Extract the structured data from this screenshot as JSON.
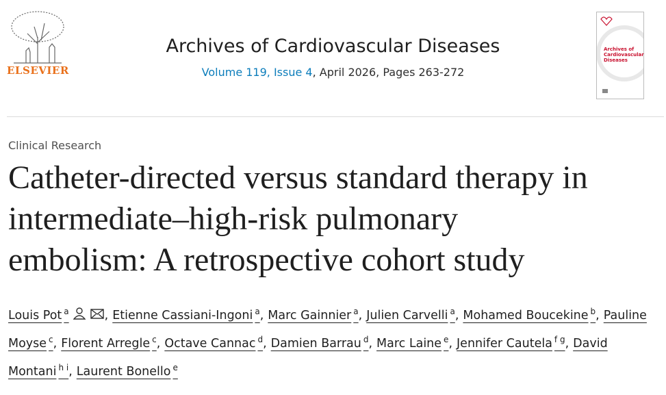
{
  "header": {
    "publisher": "ELSEVIER",
    "journal": "Archives of Cardiovascular Diseases",
    "volume_issue": "Volume 119, Issue 4",
    "date_pages": ", April 2026, Pages 263-272",
    "cover_title": "Archives of Cardiovascular Diseases"
  },
  "article": {
    "section": "Clinical Research",
    "title_lines": [
      "Catheter-directed versus standard therapy in",
      "intermediate–high-risk pulmonary",
      "embolism: A retrospective cohort study"
    ],
    "authors": [
      {
        "name": "Louis Pot",
        "aff": "a"
      },
      {
        "name": "Etienne Cassiani-Ingoni",
        "aff": "a"
      },
      {
        "name": "Marc Gainnier",
        "aff": "a"
      },
      {
        "name": "Julien Carvelli",
        "aff": "a"
      },
      {
        "name": "Mohamed Boucekine",
        "aff": "b"
      },
      {
        "name": "Pauline Moyse",
        "aff": "c"
      },
      {
        "name": "Florent Arregle",
        "aff": "c"
      },
      {
        "name": "Octave Cannac",
        "aff": "d"
      },
      {
        "name": "Damien Barrau",
        "aff": "d"
      },
      {
        "name": "Marc Laine",
        "aff": "e"
      },
      {
        "name": "Jennifer Cautela",
        "aff": "f g"
      },
      {
        "name": "David Montani",
        "aff": "h i"
      },
      {
        "name": "Laurent Bonello",
        "aff": "e"
      }
    ]
  }
}
